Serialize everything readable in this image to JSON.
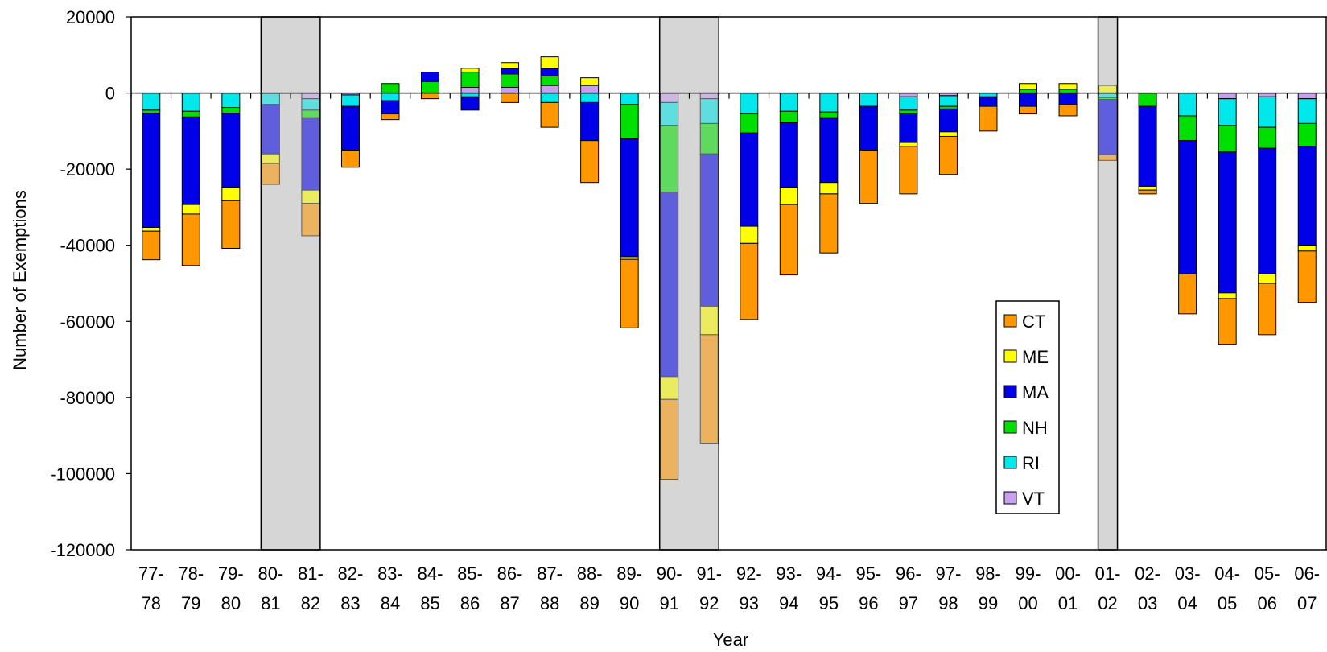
{
  "chart_data": {
    "type": "bar",
    "stacked": true,
    "xlabel": "Year",
    "ylabel": "Number of Exemptions",
    "ylim": [
      -120000,
      20000
    ],
    "yticks": [
      20000,
      0,
      -20000,
      -40000,
      -60000,
      -80000,
      -100000,
      -120000
    ],
    "grid": false,
    "legend_position": "right",
    "categories": [
      {
        "top": "77-",
        "bottom": "78"
      },
      {
        "top": "78-",
        "bottom": "79"
      },
      {
        "top": "79-",
        "bottom": "80"
      },
      {
        "top": "80-",
        "bottom": "81"
      },
      {
        "top": "81-",
        "bottom": "82"
      },
      {
        "top": "82-",
        "bottom": "83"
      },
      {
        "top": "83-",
        "bottom": "84"
      },
      {
        "top": "84-",
        "bottom": "85"
      },
      {
        "top": "85-",
        "bottom": "86"
      },
      {
        "top": "86-",
        "bottom": "87"
      },
      {
        "top": "87-",
        "bottom": "88"
      },
      {
        "top": "88-",
        "bottom": "89"
      },
      {
        "top": "89-",
        "bottom": "90"
      },
      {
        "top": "90-",
        "bottom": "91"
      },
      {
        "top": "91-",
        "bottom": "92"
      },
      {
        "top": "92-",
        "bottom": "93"
      },
      {
        "top": "93-",
        "bottom": "94"
      },
      {
        "top": "94-",
        "bottom": "95"
      },
      {
        "top": "95-",
        "bottom": "96"
      },
      {
        "top": "96-",
        "bottom": "97"
      },
      {
        "top": "97-",
        "bottom": "98"
      },
      {
        "top": "98-",
        "bottom": "99"
      },
      {
        "top": "99-",
        "bottom": "00"
      },
      {
        "top": "00-",
        "bottom": "01"
      },
      {
        "top": "01-",
        "bottom": "02"
      },
      {
        "top": "02-",
        "bottom": "03"
      },
      {
        "top": "03-",
        "bottom": "04"
      },
      {
        "top": "04-",
        "bottom": "05"
      },
      {
        "top": "05-",
        "bottom": "06"
      },
      {
        "top": "06-",
        "bottom": "07"
      }
    ],
    "recession_periods": [
      "80-81",
      "81-82",
      "90-91",
      "91-92",
      "01-02"
    ],
    "series": [
      {
        "name": "VT",
        "color": "#c8a0f0",
        "values": [
          0,
          0,
          0,
          0,
          -1500,
          -500,
          0,
          0,
          1500,
          1500,
          2000,
          2000,
          0,
          -2500,
          -1500,
          0,
          0,
          0,
          0,
          -1000,
          -700,
          0,
          0,
          0,
          0,
          0,
          0,
          -1500,
          -1000,
          -1500
        ]
      },
      {
        "name": "RI",
        "color": "#00e8ec",
        "values": [
          -4500,
          -4800,
          -3800,
          -3000,
          -3000,
          -3000,
          -2000,
          0,
          -1000,
          0,
          -2500,
          -2500,
          -3000,
          -6000,
          -6500,
          -5500,
          -4800,
          -5000,
          -3500,
          -3500,
          -2800,
          -1000,
          0,
          0,
          -1200,
          0,
          -6000,
          -7000,
          -8000,
          -6500
        ]
      },
      {
        "name": "NH",
        "color": "#00e000",
        "values": [
          -800,
          -1500,
          -1500,
          0,
          -2000,
          0,
          2500,
          3000,
          4000,
          3500,
          2500,
          0,
          -9000,
          -17500,
          -8000,
          -5000,
          -3000,
          -1500,
          0,
          -1000,
          -700,
          0,
          1000,
          1000,
          -500,
          -3500,
          -6500,
          -7000,
          -5500,
          -6000
        ]
      },
      {
        "name": "MA",
        "color": "#0000e8",
        "values": [
          -30000,
          -23000,
          -19500,
          -13000,
          -19000,
          -11500,
          -3500,
          2500,
          -3500,
          1500,
          2000,
          -10000,
          -31000,
          -48500,
          -40000,
          -24500,
          -17000,
          -17000,
          -11500,
          -7500,
          -6000,
          -2500,
          -3500,
          -3000,
          -14500,
          -21000,
          -35000,
          -37000,
          -33000,
          -26000
        ]
      },
      {
        "name": "ME",
        "color": "#ffff00",
        "values": [
          -1000,
          -2500,
          -3500,
          -2500,
          -3500,
          0,
          0,
          0,
          1000,
          1500,
          3000,
          2000,
          -700,
          -6000,
          -7500,
          -4500,
          -4500,
          -3000,
          0,
          -1000,
          -1200,
          0,
          1500,
          1500,
          2000,
          -1000,
          0,
          -1500,
          -2500,
          -1500
        ]
      },
      {
        "name": "CT",
        "color": "#ff9800",
        "values": [
          -7500,
          -13500,
          -12500,
          -5500,
          -8500,
          -4500,
          -1500,
          -1500,
          0,
          -2500,
          -6500,
          -11000,
          -18000,
          -21000,
          -28500,
          -20000,
          -18500,
          -15500,
          -14000,
          -12500,
          -10000,
          -6500,
          -2000,
          -3000,
          -1500,
          -1000,
          -10500,
          -12000,
          -13500,
          -13500
        ]
      }
    ],
    "legend_order": [
      "CT",
      "ME",
      "MA",
      "NH",
      "RI",
      "VT"
    ]
  }
}
